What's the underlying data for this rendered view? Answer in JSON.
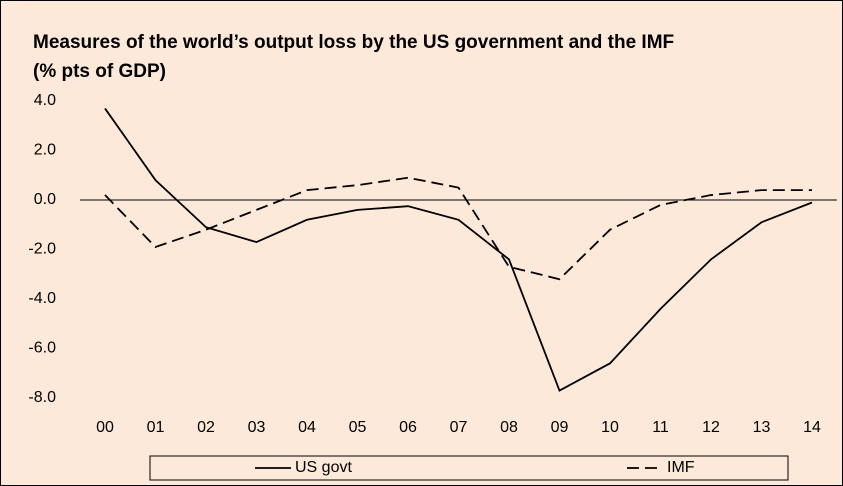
{
  "chart_data": {
    "type": "line",
    "title": "Measures of the world’s output loss by the US government and the IMF",
    "subtitle": "(% pts of GDP)",
    "categories": [
      "00",
      "01",
      "02",
      "03",
      "04",
      "05",
      "06",
      "07",
      "08",
      "09",
      "10",
      "11",
      "12",
      "13",
      "14"
    ],
    "series": [
      {
        "name": "US govt",
        "color": "#000000",
        "dash": "solid",
        "values": [
          3.7,
          0.8,
          -1.1,
          -1.7,
          -0.8,
          -0.4,
          -0.25,
          -0.8,
          -2.4,
          -7.7,
          -6.6,
          -4.4,
          -2.4,
          -0.9,
          -0.1
        ]
      },
      {
        "name": "IMF",
        "color": "#000000",
        "dash": "dashed",
        "values": [
          0.2,
          -1.9,
          -1.2,
          -0.4,
          0.4,
          0.6,
          0.9,
          0.5,
          -2.7,
          -3.2,
          -1.2,
          -0.2,
          0.2,
          0.4,
          0.4
        ]
      }
    ],
    "ylim": [
      -8,
      4
    ],
    "yticks": [
      {
        "value": 4,
        "label": "4.0"
      },
      {
        "value": 2,
        "label": "2.0"
      },
      {
        "value": 0,
        "label": "0.0"
      },
      {
        "value": -2,
        "label": "-2.0"
      },
      {
        "value": -4,
        "label": "-4.0"
      },
      {
        "value": -6,
        "label": "-6.0"
      },
      {
        "value": -8,
        "label": "-8.0"
      }
    ],
    "legend": "bottom"
  }
}
